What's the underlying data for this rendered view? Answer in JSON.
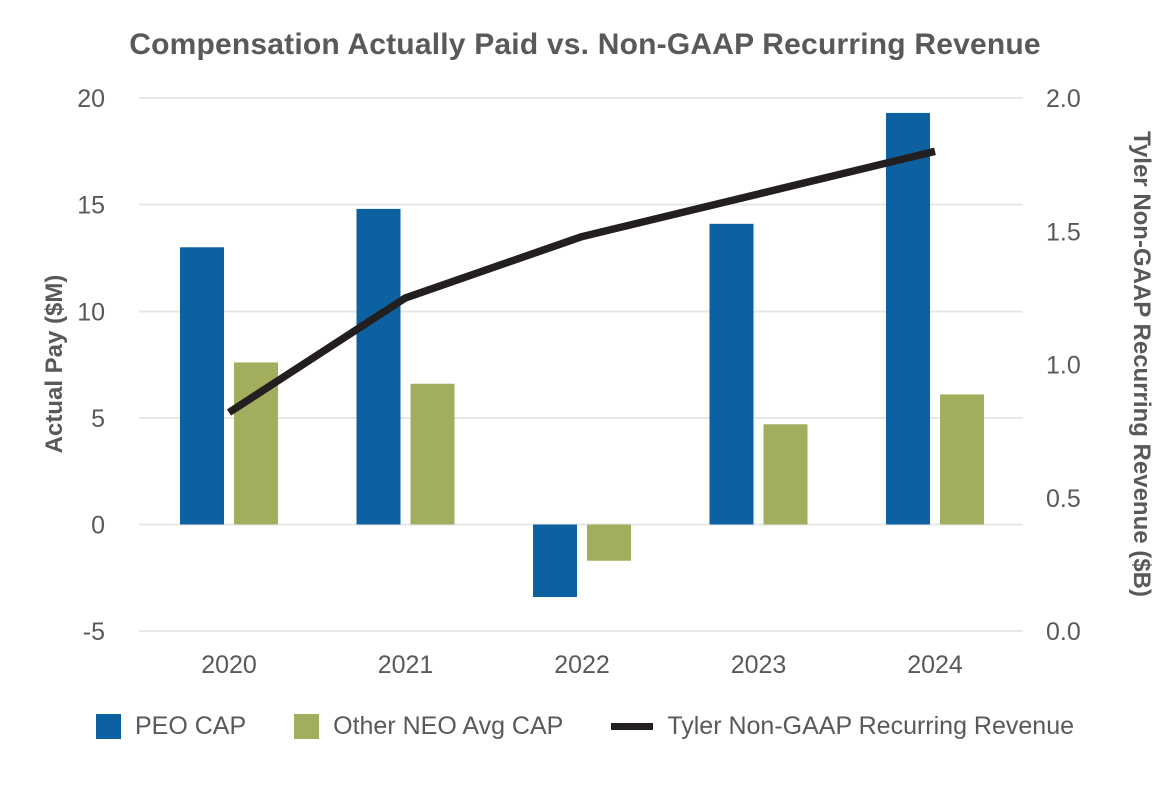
{
  "title": "Compensation Actually Paid vs. Non-GAAP Recurring Revenue",
  "left_axis": {
    "title": "Actual Pay ($M)",
    "tick_labels": [
      "20",
      "15",
      "10",
      "5",
      "0",
      "-5"
    ],
    "tick_values": [
      20,
      15,
      10,
      5,
      0,
      -5
    ]
  },
  "right_axis": {
    "title": "Tyler Non-GAAP Recurring Revenue ($B)",
    "tick_labels": [
      "2.0",
      "1.5",
      "1.0",
      "0.5",
      "0.0"
    ],
    "tick_values": [
      2.0,
      1.5,
      1.0,
      0.5,
      0.0
    ]
  },
  "legend": {
    "items": [
      {
        "label": "PEO CAP",
        "swatch": "square",
        "color": "#0E61A1"
      },
      {
        "label": "Other NEO Avg CAP",
        "swatch": "square",
        "color": "#A2AD5D"
      },
      {
        "label": "Tyler Non-GAAP Recurring Revenue",
        "swatch": "line",
        "color": "#231F20"
      }
    ]
  },
  "colors": {
    "peo_bar": "#0E61A1",
    "neo_bar": "#A2AD5D",
    "revenue_line": "#231F20",
    "gridline": "#E7E7E7",
    "text": "#58595B"
  },
  "chart_data": {
    "type": "combo",
    "categories": [
      "2020",
      "2021",
      "2022",
      "2023",
      "2024"
    ],
    "series": [
      {
        "name": "PEO CAP",
        "type": "bar",
        "axis": "left",
        "color": "#0E61A1",
        "values": [
          13.0,
          14.8,
          -3.4,
          14.1,
          19.3
        ]
      },
      {
        "name": "Other NEO Avg CAP",
        "type": "bar",
        "axis": "left",
        "color": "#A2AD5D",
        "values": [
          7.6,
          6.6,
          -1.7,
          4.7,
          6.1
        ]
      },
      {
        "name": "Tyler Non-GAAP Recurring Revenue",
        "type": "line",
        "axis": "right",
        "color": "#231F20",
        "values": [
          0.82,
          1.25,
          1.48,
          1.64,
          1.8
        ]
      }
    ],
    "title": "Compensation Actually Paid vs. Non-GAAP Recurring Revenue",
    "left_ylabel": "Actual Pay ($M)",
    "right_ylabel": "Tyler Non-GAAP Recurring Revenue ($B)",
    "left_ylim": [
      -5,
      20
    ],
    "right_ylim": [
      0.0,
      2.0
    ],
    "grid": true,
    "legend_position": "bottom"
  }
}
